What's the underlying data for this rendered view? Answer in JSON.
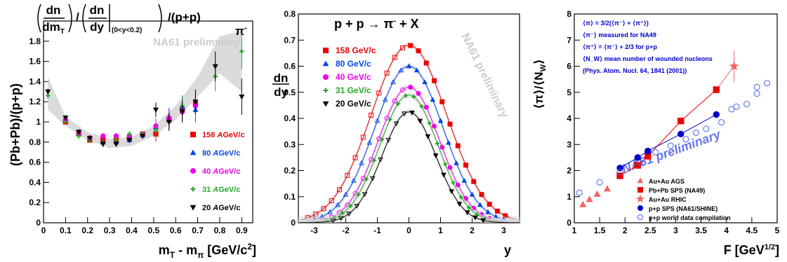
{
  "chart_data": [
    {
      "type": "scatter",
      "panel": "left",
      "title_formula": {
        "num_top": "dn",
        "num_bottom": "dm",
        "num_sub": "T",
        "den_top": "dn",
        "den_bottom": "dy",
        "den_sub": "(0<y<0.2)"
      },
      "particle": "π",
      "particle_sup": "-",
      "watermark": "NA61 preliminary",
      "ylabel": "(Pb+Pb)/(p+p)",
      "xlabel_main": "m",
      "xlabel_sub1": "T",
      "xlabel_mid": " - m",
      "xlabel_sub2": "π",
      "xlabel_tail": " [GeV/c",
      "xlabel_sup": "2",
      "xlabel_end": "]",
      "xlim": [
        0,
        0.95
      ],
      "ylim": [
        0,
        2.0
      ],
      "xticks": [
        "0",
        "0.1",
        "0.2",
        "0.3",
        "0.4",
        "0.5",
        "0.6",
        "0.7",
        "0.8",
        "0.9"
      ],
      "yticks": [
        "0",
        "0.2",
        "0.4",
        "0.6",
        "0.8",
        "1",
        "1.2",
        "1.4",
        "1.6",
        "1.8"
      ],
      "band": {
        "color": "#cccccc",
        "x": [
          0.02,
          0.1,
          0.2,
          0.3,
          0.4,
          0.5,
          0.6,
          0.7,
          0.8,
          0.9
        ],
        "low": [
          1.12,
          0.96,
          0.82,
          0.74,
          0.76,
          0.86,
          1.02,
          1.25,
          1.48,
          1.3
        ],
        "high": [
          1.45,
          1.05,
          0.9,
          0.83,
          0.85,
          0.96,
          1.16,
          1.45,
          1.85,
          1.9
        ]
      },
      "series": [
        {
          "name": "158 AGeV/c",
          "energy": "158",
          "unit_prefix": "A",
          "unit": "GeV/c",
          "color": "#ee0000",
          "marker": "square",
          "x": [
            0.1,
            0.16,
            0.21,
            0.27,
            0.33,
            0.39,
            0.45,
            0.51,
            0.57,
            0.63,
            0.69
          ],
          "y": [
            1.0,
            0.88,
            0.82,
            0.82,
            0.82,
            0.84,
            0.88,
            0.88,
            1.02,
            1.12,
            1.18
          ]
        },
        {
          "name": "80 AGeV/c",
          "energy": "80",
          "unit_prefix": "A",
          "unit": "GeV/c",
          "color": "#0044ee",
          "marker": "triangle-up",
          "x": [
            0.1,
            0.16,
            0.21,
            0.27,
            0.33,
            0.39,
            0.45,
            0.51,
            0.57,
            0.63,
            0.69
          ],
          "y": [
            1.02,
            0.9,
            0.84,
            0.8,
            0.8,
            0.82,
            0.87,
            0.95,
            1.05,
            1.15,
            1.12
          ]
        },
        {
          "name": "40 AGeV/c",
          "energy": "40",
          "unit_prefix": "A",
          "unit": "GeV/c",
          "color": "#ee00ee",
          "marker": "circle",
          "x": [
            0.1,
            0.16,
            0.21,
            0.27,
            0.33,
            0.39,
            0.45,
            0.51,
            0.57,
            0.63,
            0.69
          ],
          "y": [
            1.02,
            0.88,
            0.84,
            0.86,
            0.86,
            0.86,
            0.88,
            0.96,
            1.04,
            1.1,
            1.16
          ]
        },
        {
          "name": "31 AGeV/c",
          "energy": "31",
          "unit_prefix": "A",
          "unit": "GeV/c",
          "color": "#22aa22",
          "marker": "cross",
          "x": [
            0.02,
            0.1,
            0.16,
            0.21,
            0.27,
            0.33,
            0.39,
            0.45,
            0.51,
            0.57,
            0.63,
            0.69,
            0.78,
            0.9
          ],
          "y": [
            1.26,
            1.0,
            0.86,
            0.82,
            0.79,
            0.82,
            0.88,
            0.88,
            0.92,
            1.0,
            1.16,
            1.2,
            1.45,
            1.7
          ]
        },
        {
          "name": "20 AGeV/c",
          "energy": "20",
          "unit_prefix": "A",
          "unit": "GeV/c",
          "color": "#000000",
          "marker": "triangle-down",
          "x": [
            0.02,
            0.1,
            0.16,
            0.21,
            0.27,
            0.33,
            0.39,
            0.45,
            0.51,
            0.57,
            0.63,
            0.69,
            0.78,
            0.9
          ],
          "y": [
            1.3,
            1.04,
            0.9,
            0.84,
            0.78,
            0.78,
            0.82,
            0.86,
            1.12,
            1.0,
            1.1,
            1.2,
            1.55,
            1.25
          ]
        }
      ]
    },
    {
      "type": "line",
      "panel": "middle",
      "title_left": "p + p → π",
      "title_sup": "-",
      "title_right": " + X",
      "watermark": "NA61 preliminary",
      "ylabel_top": "dn",
      "ylabel_bottom": "dy",
      "xlabel": "y",
      "xlim": [
        -3.5,
        3.5
      ],
      "ylim": [
        0,
        0.8
      ],
      "xticks": [
        "-3",
        "-2",
        "-1",
        "0",
        "1",
        "2",
        "3"
      ],
      "yticks": [
        "0",
        "0.1",
        "0.2",
        "0.3",
        "0.4",
        "0.5",
        "0.6",
        "0.7",
        "0.8"
      ],
      "series": [
        {
          "name": "158 GeV/c",
          "color": "#ee0000",
          "marker": "square",
          "amp": 0.68,
          "sigma": 1.2,
          "y_range": [
            -3.2,
            3.2
          ]
        },
        {
          "name": "80 GeV/c",
          "color": "#0044ee",
          "marker": "triangle-up",
          "amp": 0.6,
          "sigma": 1.08,
          "y_range": [
            -3.0,
            3.0
          ]
        },
        {
          "name": "40 GeV/c",
          "color": "#ee00ee",
          "marker": "circle",
          "amp": 0.52,
          "sigma": 0.97,
          "y_range": [
            -2.7,
            2.7
          ]
        },
        {
          "name": "31 GeV/c",
          "color": "#22aa22",
          "marker": "cross",
          "amp": 0.49,
          "sigma": 0.92,
          "y_range": [
            -2.6,
            2.6
          ]
        },
        {
          "name": "20 GeV/c",
          "color": "#000000",
          "marker": "triangle-down",
          "amp": 0.425,
          "sigma": 0.85,
          "y_range": [
            -2.4,
            2.4
          ]
        }
      ]
    },
    {
      "type": "scatter",
      "panel": "right",
      "ylabel": "⟨π⟩/⟨N",
      "ylabel_sub": "W",
      "ylabel_end": "⟩",
      "xlabel_main": "F [GeV",
      "xlabel_sup": "1/2",
      "xlabel_end": "]",
      "watermark": "NA61 preliminary",
      "xlim": [
        1,
        5
      ],
      "ylim": [
        0,
        8
      ],
      "xticks": [
        "1",
        "1.5",
        "2",
        "2.5",
        "3",
        "3.5",
        "4",
        "4.5",
        "5"
      ],
      "yticks": [
        "0",
        "1",
        "2",
        "3",
        "4",
        "5",
        "6",
        "7",
        "8"
      ],
      "notes": [
        "⟨π⟩ = 3/2(⟨π⁻⟩ + ⟨π⁺⟩)",
        "⟨π⁻⟩ measured for NA49",
        "⟨π⁺⟩ = ⟨π⁻⟩ + 2/3 for p+p",
        "⟨N_W⟩ mean number of wounded nucleons",
        "(Phys. Atom. Nucl. 64, 1841 (2001))"
      ],
      "series": [
        {
          "name": "Au+Au AGS",
          "color": "#ee6666",
          "marker": "triangle-up",
          "line": false,
          "x": [
            1.17,
            1.3,
            1.45,
            1.65
          ],
          "y": [
            0.7,
            0.9,
            1.1,
            1.3
          ]
        },
        {
          "name": "Pb+Pb SPS (NA49)",
          "color": "#ee0000",
          "marker": "square",
          "line": true,
          "x": [
            1.9,
            2.25,
            2.45,
            3.1,
            3.8
          ],
          "y": [
            1.8,
            2.2,
            2.55,
            3.9,
            5.1
          ]
        },
        {
          "name": "Au+Au RHIC",
          "color": "#ee6666",
          "marker": "star",
          "line": true,
          "x": [
            4.15
          ],
          "y": [
            6.0
          ],
          "err": [
            0.6
          ]
        },
        {
          "name": "p+p SPS (NA61/SHINE)",
          "color": "#0000cc",
          "marker": "circle",
          "line": true,
          "x": [
            1.9,
            2.25,
            2.45,
            3.1,
            3.8
          ],
          "y": [
            2.1,
            2.5,
            2.75,
            3.4,
            4.15
          ]
        },
        {
          "name": "p+p world data compilation",
          "color": "#4466ee",
          "marker": "open-circle",
          "line": false,
          "x": [
            1.1,
            1.5,
            1.9,
            2.3,
            2.6,
            2.9,
            3.2,
            3.4,
            3.6,
            3.9,
            4.1,
            4.2,
            4.4,
            4.6,
            4.6,
            4.8
          ],
          "y": [
            1.15,
            1.55,
            1.95,
            2.3,
            2.7,
            2.95,
            3.2,
            3.45,
            3.6,
            3.85,
            4.35,
            4.45,
            4.55,
            4.95,
            5.2,
            5.35
          ]
        }
      ]
    }
  ]
}
